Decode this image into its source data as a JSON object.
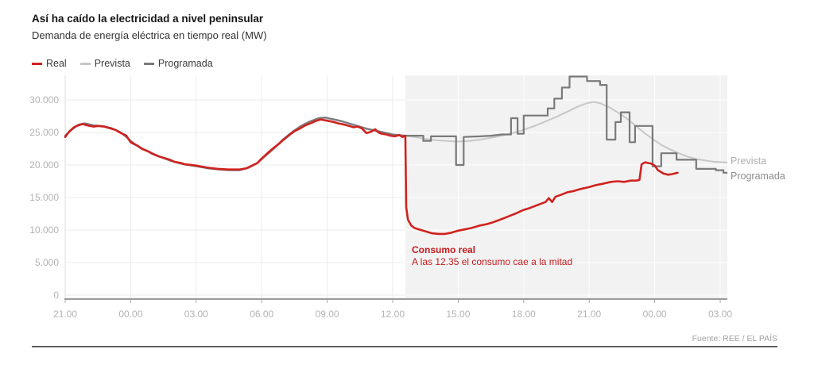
{
  "header": {
    "title": "Así ha caído la electricidad a nivel peninsular",
    "subtitle": "Demanda de energía eléctrica en tiempo real (MW)"
  },
  "legend": {
    "items": [
      {
        "label": "Real",
        "color": "#d0221f"
      },
      {
        "label": "Prevista",
        "color": "#c7c7c7"
      },
      {
        "label": "Programada",
        "color": "#7a7a7a"
      }
    ]
  },
  "annotation": {
    "title": "Consumo real",
    "text": "A las 12.35 el consumo cae a la mitad",
    "color": "#c8191c"
  },
  "series_end_labels": {
    "prevista": "Prevista",
    "programada": "Programada"
  },
  "source": "Fuente: REE / EL PAÍS",
  "chart_data": {
    "type": "line",
    "title": "Así ha caído la electricidad a nivel peninsular",
    "subtitle": "Demanda de energía eléctrica en tiempo real (MW)",
    "ylabel": "MW",
    "ylim": [
      0,
      33800
    ],
    "xlim_hours": [
      0,
      30.3
    ],
    "grid": true,
    "legend_position": "top-left",
    "blackout_shade": {
      "t_start": 15.583,
      "t_end": 30.3,
      "event_label": "12.35"
    },
    "y_ticks": [
      {
        "v": 0,
        "label": "0"
      },
      {
        "v": 5000,
        "label": "5.000"
      },
      {
        "v": 10000,
        "label": "10.000"
      },
      {
        "v": 15000,
        "label": "15.000"
      },
      {
        "v": 20000,
        "label": "20.000"
      },
      {
        "v": 25000,
        "label": "25.000"
      },
      {
        "v": 30000,
        "label": "30.000"
      }
    ],
    "x_ticks": [
      {
        "t": 0,
        "label": "21.00"
      },
      {
        "t": 3,
        "label": "00.00"
      },
      {
        "t": 6,
        "label": "03.00"
      },
      {
        "t": 9,
        "label": "06.00"
      },
      {
        "t": 12,
        "label": "09.00"
      },
      {
        "t": 15,
        "label": "12.00"
      },
      {
        "t": 18,
        "label": "15.00"
      },
      {
        "t": 21,
        "label": "18.00"
      },
      {
        "t": 24,
        "label": "21.00"
      },
      {
        "t": 27,
        "label": "00.00"
      },
      {
        "t": 30,
        "label": "03.00"
      }
    ],
    "series": [
      {
        "name": "Real",
        "color": "#d0221f",
        "width": 2.6,
        "points": [
          [
            0,
            24300
          ],
          [
            0.2,
            25200
          ],
          [
            0.4,
            25800
          ],
          [
            0.6,
            26100
          ],
          [
            0.8,
            26300
          ],
          [
            1,
            26100
          ],
          [
            1.3,
            25900
          ],
          [
            1.5,
            26000
          ],
          [
            1.8,
            25900
          ],
          [
            2,
            25700
          ],
          [
            2.3,
            25400
          ],
          [
            2.5,
            25000
          ],
          [
            2.8,
            24500
          ],
          [
            3,
            23500
          ],
          [
            3.3,
            23000
          ],
          [
            3.5,
            22500
          ],
          [
            3.8,
            22100
          ],
          [
            4,
            21700
          ],
          [
            4.3,
            21300
          ],
          [
            4.5,
            21100
          ],
          [
            4.8,
            20800
          ],
          [
            5,
            20500
          ],
          [
            5.3,
            20300
          ],
          [
            5.5,
            20100
          ],
          [
            5.8,
            20000
          ],
          [
            6,
            19900
          ],
          [
            6.5,
            19600
          ],
          [
            7,
            19400
          ],
          [
            7.5,
            19300
          ],
          [
            8,
            19300
          ],
          [
            8.3,
            19500
          ],
          [
            8.5,
            19800
          ],
          [
            8.8,
            20300
          ],
          [
            9,
            21000
          ],
          [
            9.3,
            21900
          ],
          [
            9.5,
            22500
          ],
          [
            9.8,
            23300
          ],
          [
            10,
            23900
          ],
          [
            10.3,
            24700
          ],
          [
            10.5,
            25200
          ],
          [
            10.8,
            25700
          ],
          [
            11,
            26100
          ],
          [
            11.3,
            26500
          ],
          [
            11.5,
            26800
          ],
          [
            11.7,
            27000
          ],
          [
            12,
            26800
          ],
          [
            12.3,
            26600
          ],
          [
            12.5,
            26400
          ],
          [
            12.8,
            26200
          ],
          [
            13,
            26000
          ],
          [
            13.2,
            25800
          ],
          [
            13.4,
            25900
          ],
          [
            13.6,
            25600
          ],
          [
            13.8,
            24900
          ],
          [
            14,
            25100
          ],
          [
            14.2,
            25500
          ],
          [
            14.35,
            25000
          ],
          [
            14.5,
            24800
          ],
          [
            14.7,
            24700
          ],
          [
            14.9,
            24500
          ],
          [
            15.1,
            24400
          ],
          [
            15.3,
            24600
          ],
          [
            15.45,
            24300
          ],
          [
            15.58,
            24500
          ],
          [
            15.62,
            13500
          ],
          [
            15.7,
            11600
          ],
          [
            15.85,
            10700
          ],
          [
            16,
            10300
          ],
          [
            16.2,
            10100
          ],
          [
            16.5,
            9800
          ],
          [
            16.8,
            9500
          ],
          [
            17.1,
            9400
          ],
          [
            17.4,
            9400
          ],
          [
            17.7,
            9600
          ],
          [
            18,
            9900
          ],
          [
            18.3,
            10100
          ],
          [
            18.6,
            10300
          ],
          [
            19,
            10700
          ],
          [
            19.3,
            10900
          ],
          [
            19.6,
            11200
          ],
          [
            20,
            11700
          ],
          [
            20.3,
            12100
          ],
          [
            20.6,
            12500
          ],
          [
            21,
            13100
          ],
          [
            21.3,
            13400
          ],
          [
            21.6,
            13800
          ],
          [
            22,
            14300
          ],
          [
            22.15,
            14900
          ],
          [
            22.3,
            14300
          ],
          [
            22.45,
            15100
          ],
          [
            22.7,
            15400
          ],
          [
            23,
            15800
          ],
          [
            23.3,
            16000
          ],
          [
            23.6,
            16300
          ],
          [
            24,
            16600
          ],
          [
            24.3,
            16900
          ],
          [
            24.6,
            17100
          ],
          [
            25,
            17400
          ],
          [
            25.3,
            17500
          ],
          [
            25.6,
            17400
          ],
          [
            25.9,
            17600
          ],
          [
            26.15,
            17600
          ],
          [
            26.3,
            17700
          ],
          [
            26.4,
            20100
          ],
          [
            26.55,
            20400
          ],
          [
            26.7,
            20300
          ],
          [
            26.85,
            20200
          ],
          [
            27,
            19900
          ],
          [
            27.15,
            19200
          ],
          [
            27.4,
            18700
          ],
          [
            27.6,
            18500
          ],
          [
            27.8,
            18600
          ],
          [
            28.05,
            18800
          ]
        ]
      },
      {
        "name": "Prevista",
        "color": "#c7c7c7",
        "width": 2,
        "points": [
          [
            0,
            24600
          ],
          [
            0.3,
            25500
          ],
          [
            0.6,
            26100
          ],
          [
            0.9,
            26300
          ],
          [
            1.3,
            26000
          ],
          [
            1.7,
            25900
          ],
          [
            2.1,
            25600
          ],
          [
            2.5,
            25100
          ],
          [
            2.8,
            24400
          ],
          [
            3,
            23400
          ],
          [
            3.4,
            22700
          ],
          [
            3.8,
            22000
          ],
          [
            4.2,
            21400
          ],
          [
            4.6,
            20900
          ],
          [
            5,
            20400
          ],
          [
            5.4,
            20100
          ],
          [
            5.8,
            19900
          ],
          [
            6.2,
            19700
          ],
          [
            6.6,
            19500
          ],
          [
            7,
            19300
          ],
          [
            7.5,
            19200
          ],
          [
            8,
            19200
          ],
          [
            8.4,
            19500
          ],
          [
            8.8,
            20200
          ],
          [
            9.2,
            21400
          ],
          [
            9.6,
            22500
          ],
          [
            10,
            23800
          ],
          [
            10.4,
            24900
          ],
          [
            10.8,
            25900
          ],
          [
            11.2,
            26500
          ],
          [
            11.6,
            27000
          ],
          [
            11.9,
            27200
          ],
          [
            12.2,
            27000
          ],
          [
            12.6,
            26700
          ],
          [
            13,
            26300
          ],
          [
            13.4,
            25900
          ],
          [
            13.8,
            25500
          ],
          [
            14.2,
            25200
          ],
          [
            14.6,
            24900
          ],
          [
            15,
            24700
          ],
          [
            15.6,
            24500
          ],
          [
            16,
            24300
          ],
          [
            16.5,
            24000
          ],
          [
            17,
            23800
          ],
          [
            17.5,
            23700
          ],
          [
            18,
            23600
          ],
          [
            18.5,
            23700
          ],
          [
            19,
            23900
          ],
          [
            19.5,
            24200
          ],
          [
            20,
            24500
          ],
          [
            20.5,
            24900
          ],
          [
            21,
            25400
          ],
          [
            21.5,
            26000
          ],
          [
            22,
            26700
          ],
          [
            22.5,
            27400
          ],
          [
            23,
            28200
          ],
          [
            23.5,
            29000
          ],
          [
            23.9,
            29500
          ],
          [
            24.2,
            29700
          ],
          [
            24.5,
            29500
          ],
          [
            24.9,
            28900
          ],
          [
            25.3,
            28100
          ],
          [
            25.7,
            27200
          ],
          [
            26.1,
            26100
          ],
          [
            26.5,
            25000
          ],
          [
            26.9,
            24000
          ],
          [
            27.3,
            23100
          ],
          [
            27.7,
            22400
          ],
          [
            28.1,
            21800
          ],
          [
            28.5,
            21300
          ],
          [
            28.9,
            20900
          ],
          [
            29.3,
            20700
          ],
          [
            29.7,
            20500
          ],
          [
            30.3,
            20400
          ]
        ]
      },
      {
        "name": "Programada",
        "color": "#7a7a7a",
        "width": 2.2,
        "points": [
          [
            0,
            24500
          ],
          [
            0.3,
            25400
          ],
          [
            0.6,
            26200
          ],
          [
            0.9,
            26400
          ],
          [
            1.3,
            26100
          ],
          [
            1.7,
            26000
          ],
          [
            2.1,
            25700
          ],
          [
            2.5,
            25100
          ],
          [
            2.9,
            24000
          ],
          [
            3.2,
            23200
          ],
          [
            3.6,
            22400
          ],
          [
            4,
            21800
          ],
          [
            4.4,
            21200
          ],
          [
            4.8,
            20700
          ],
          [
            5.2,
            20300
          ],
          [
            5.6,
            20000
          ],
          [
            6,
            19800
          ],
          [
            6.5,
            19500
          ],
          [
            7,
            19300
          ],
          [
            7.5,
            19200
          ],
          [
            8,
            19200
          ],
          [
            8.4,
            19600
          ],
          [
            8.8,
            20300
          ],
          [
            9.2,
            21500
          ],
          [
            9.6,
            22700
          ],
          [
            10,
            24000
          ],
          [
            10.4,
            25100
          ],
          [
            10.8,
            26000
          ],
          [
            11.2,
            26700
          ],
          [
            11.6,
            27200
          ],
          [
            11.9,
            27300
          ],
          [
            12.2,
            27100
          ],
          [
            12.6,
            26800
          ],
          [
            13,
            26400
          ],
          [
            13.4,
            26000
          ],
          [
            13.8,
            25600
          ],
          [
            14.2,
            25300
          ],
          [
            14.6,
            25000
          ],
          [
            15,
            24700
          ],
          [
            15.6,
            24500
          ],
          [
            16.4,
            24500
          ],
          [
            16.4,
            23700
          ],
          [
            16.75,
            23700
          ],
          [
            16.75,
            24400
          ],
          [
            17.9,
            24400
          ],
          [
            17.9,
            20000
          ],
          [
            18.25,
            20000
          ],
          [
            18.25,
            24300
          ],
          [
            19,
            24400
          ],
          [
            19.5,
            24500
          ],
          [
            20,
            24700
          ],
          [
            20.42,
            24700
          ],
          [
            20.42,
            27200
          ],
          [
            20.72,
            27200
          ],
          [
            20.72,
            24800
          ],
          [
            21,
            24800
          ],
          [
            21,
            27600
          ],
          [
            22.1,
            27600
          ],
          [
            22.1,
            28700
          ],
          [
            22.4,
            28700
          ],
          [
            22.4,
            30200
          ],
          [
            22.75,
            30200
          ],
          [
            22.75,
            31900
          ],
          [
            23.1,
            31900
          ],
          [
            23.1,
            33600
          ],
          [
            23.9,
            33600
          ],
          [
            23.9,
            32900
          ],
          [
            24.5,
            32900
          ],
          [
            24.5,
            32300
          ],
          [
            24.8,
            32300
          ],
          [
            24.8,
            23900
          ],
          [
            25.2,
            23900
          ],
          [
            25.2,
            26600
          ],
          [
            25.45,
            26600
          ],
          [
            25.45,
            28100
          ],
          [
            25.85,
            28100
          ],
          [
            25.85,
            23500
          ],
          [
            26.1,
            23500
          ],
          [
            26.1,
            26000
          ],
          [
            26.9,
            26000
          ],
          [
            26.9,
            19800
          ],
          [
            27.3,
            19800
          ],
          [
            27.3,
            21800
          ],
          [
            28,
            21800
          ],
          [
            28,
            20800
          ],
          [
            28.9,
            20800
          ],
          [
            28.9,
            19400
          ],
          [
            29.8,
            19400
          ],
          [
            29.8,
            19200
          ],
          [
            30.15,
            19200
          ],
          [
            30.15,
            18800
          ],
          [
            30.3,
            18800
          ]
        ]
      }
    ]
  }
}
